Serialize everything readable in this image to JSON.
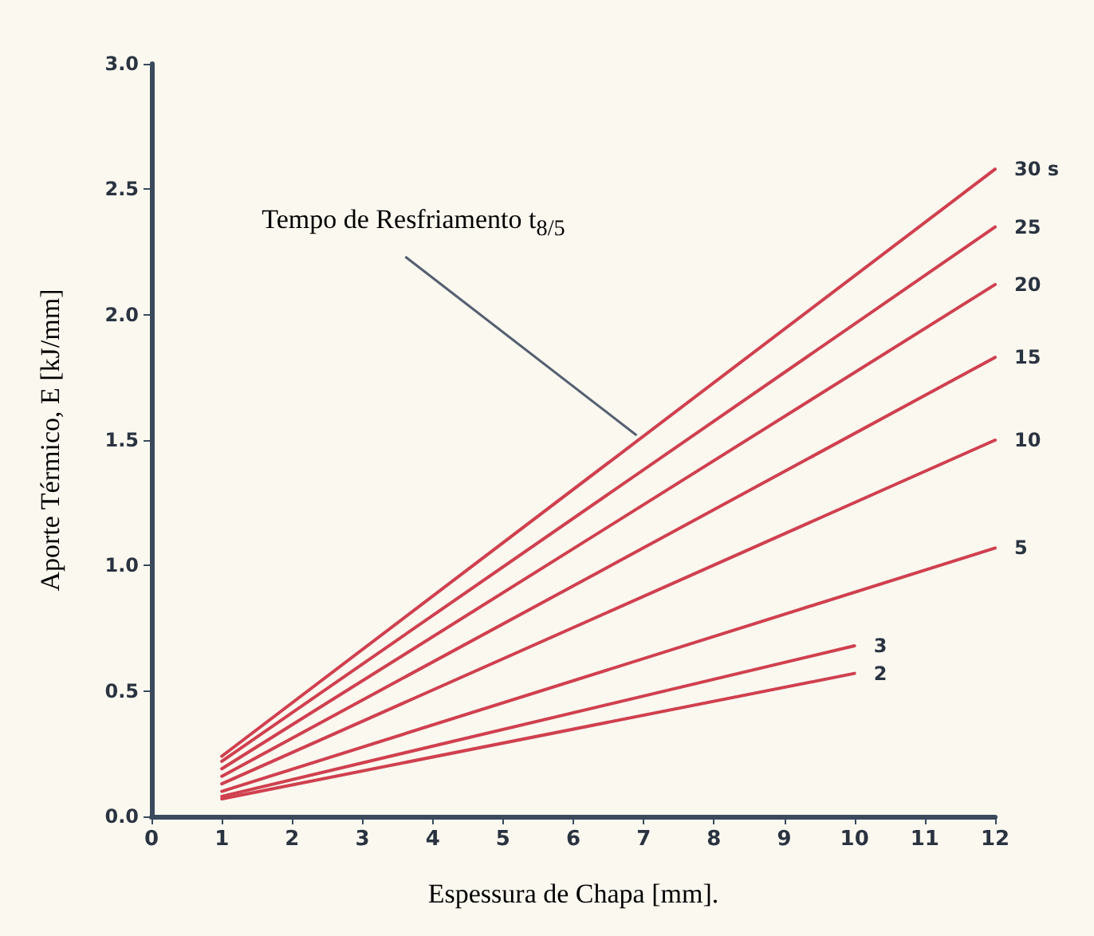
{
  "chart_data": {
    "type": "line",
    "xlabel": "Espessura de Chapa [mm].",
    "ylabel": "Aporte Térmico, E [kJ/mm]",
    "annotations": [
      {
        "text": "Tempo de Resfriamento t$_{8/5}$",
        "x": 6.9,
        "y": 1.5
      }
    ],
    "xlim": [
      0,
      12
    ],
    "xticks": [
      0,
      1,
      2,
      3,
      4,
      5,
      6,
      7,
      8,
      9,
      10,
      11,
      12
    ],
    "ylim": [
      0,
      3
    ],
    "yticks": [
      {
        "value": 0,
        "label": "0.0"
      },
      {
        "value": 0.5,
        "label": "0.5"
      },
      {
        "value": 1,
        "label": "1.0"
      },
      {
        "value": 1.5,
        "label": "1.5"
      },
      {
        "value": 2,
        "label": "2.0"
      },
      {
        "value": 2.5,
        "label": "2.5"
      },
      {
        "value": 3,
        "label": "3.0"
      }
    ],
    "grid": false,
    "legend": false,
    "marker": "none",
    "line_style": "solid",
    "series": [
      {
        "name": "30 s",
        "color": "#d0404f",
        "x": [
          1,
          12
        ],
        "values": [
          0.24,
          2.58
        ]
      },
      {
        "name": "25",
        "color": "#d0404f",
        "x": [
          1,
          12
        ],
        "values": [
          0.22,
          2.35
        ]
      },
      {
        "name": "20",
        "color": "#d0404f",
        "x": [
          1,
          12
        ],
        "values": [
          0.19,
          2.12
        ]
      },
      {
        "name": "15",
        "color": "#d0404f",
        "x": [
          1,
          12
        ],
        "values": [
          0.16,
          1.83
        ]
      },
      {
        "name": "10",
        "color": "#d0404f",
        "x": [
          1,
          12
        ],
        "values": [
          0.13,
          1.5
        ]
      },
      {
        "name": "5",
        "color": "#d0404f",
        "x": [
          1,
          12
        ],
        "values": [
          0.1,
          1.07
        ]
      },
      {
        "name": "3",
        "color": "#d0404f",
        "x": [
          1,
          10
        ],
        "values": [
          0.08,
          0.68
        ]
      },
      {
        "name": "2",
        "color": "#d0404f",
        "x": [
          1,
          10
        ],
        "values": [
          0.07,
          0.57
        ]
      }
    ]
  }
}
